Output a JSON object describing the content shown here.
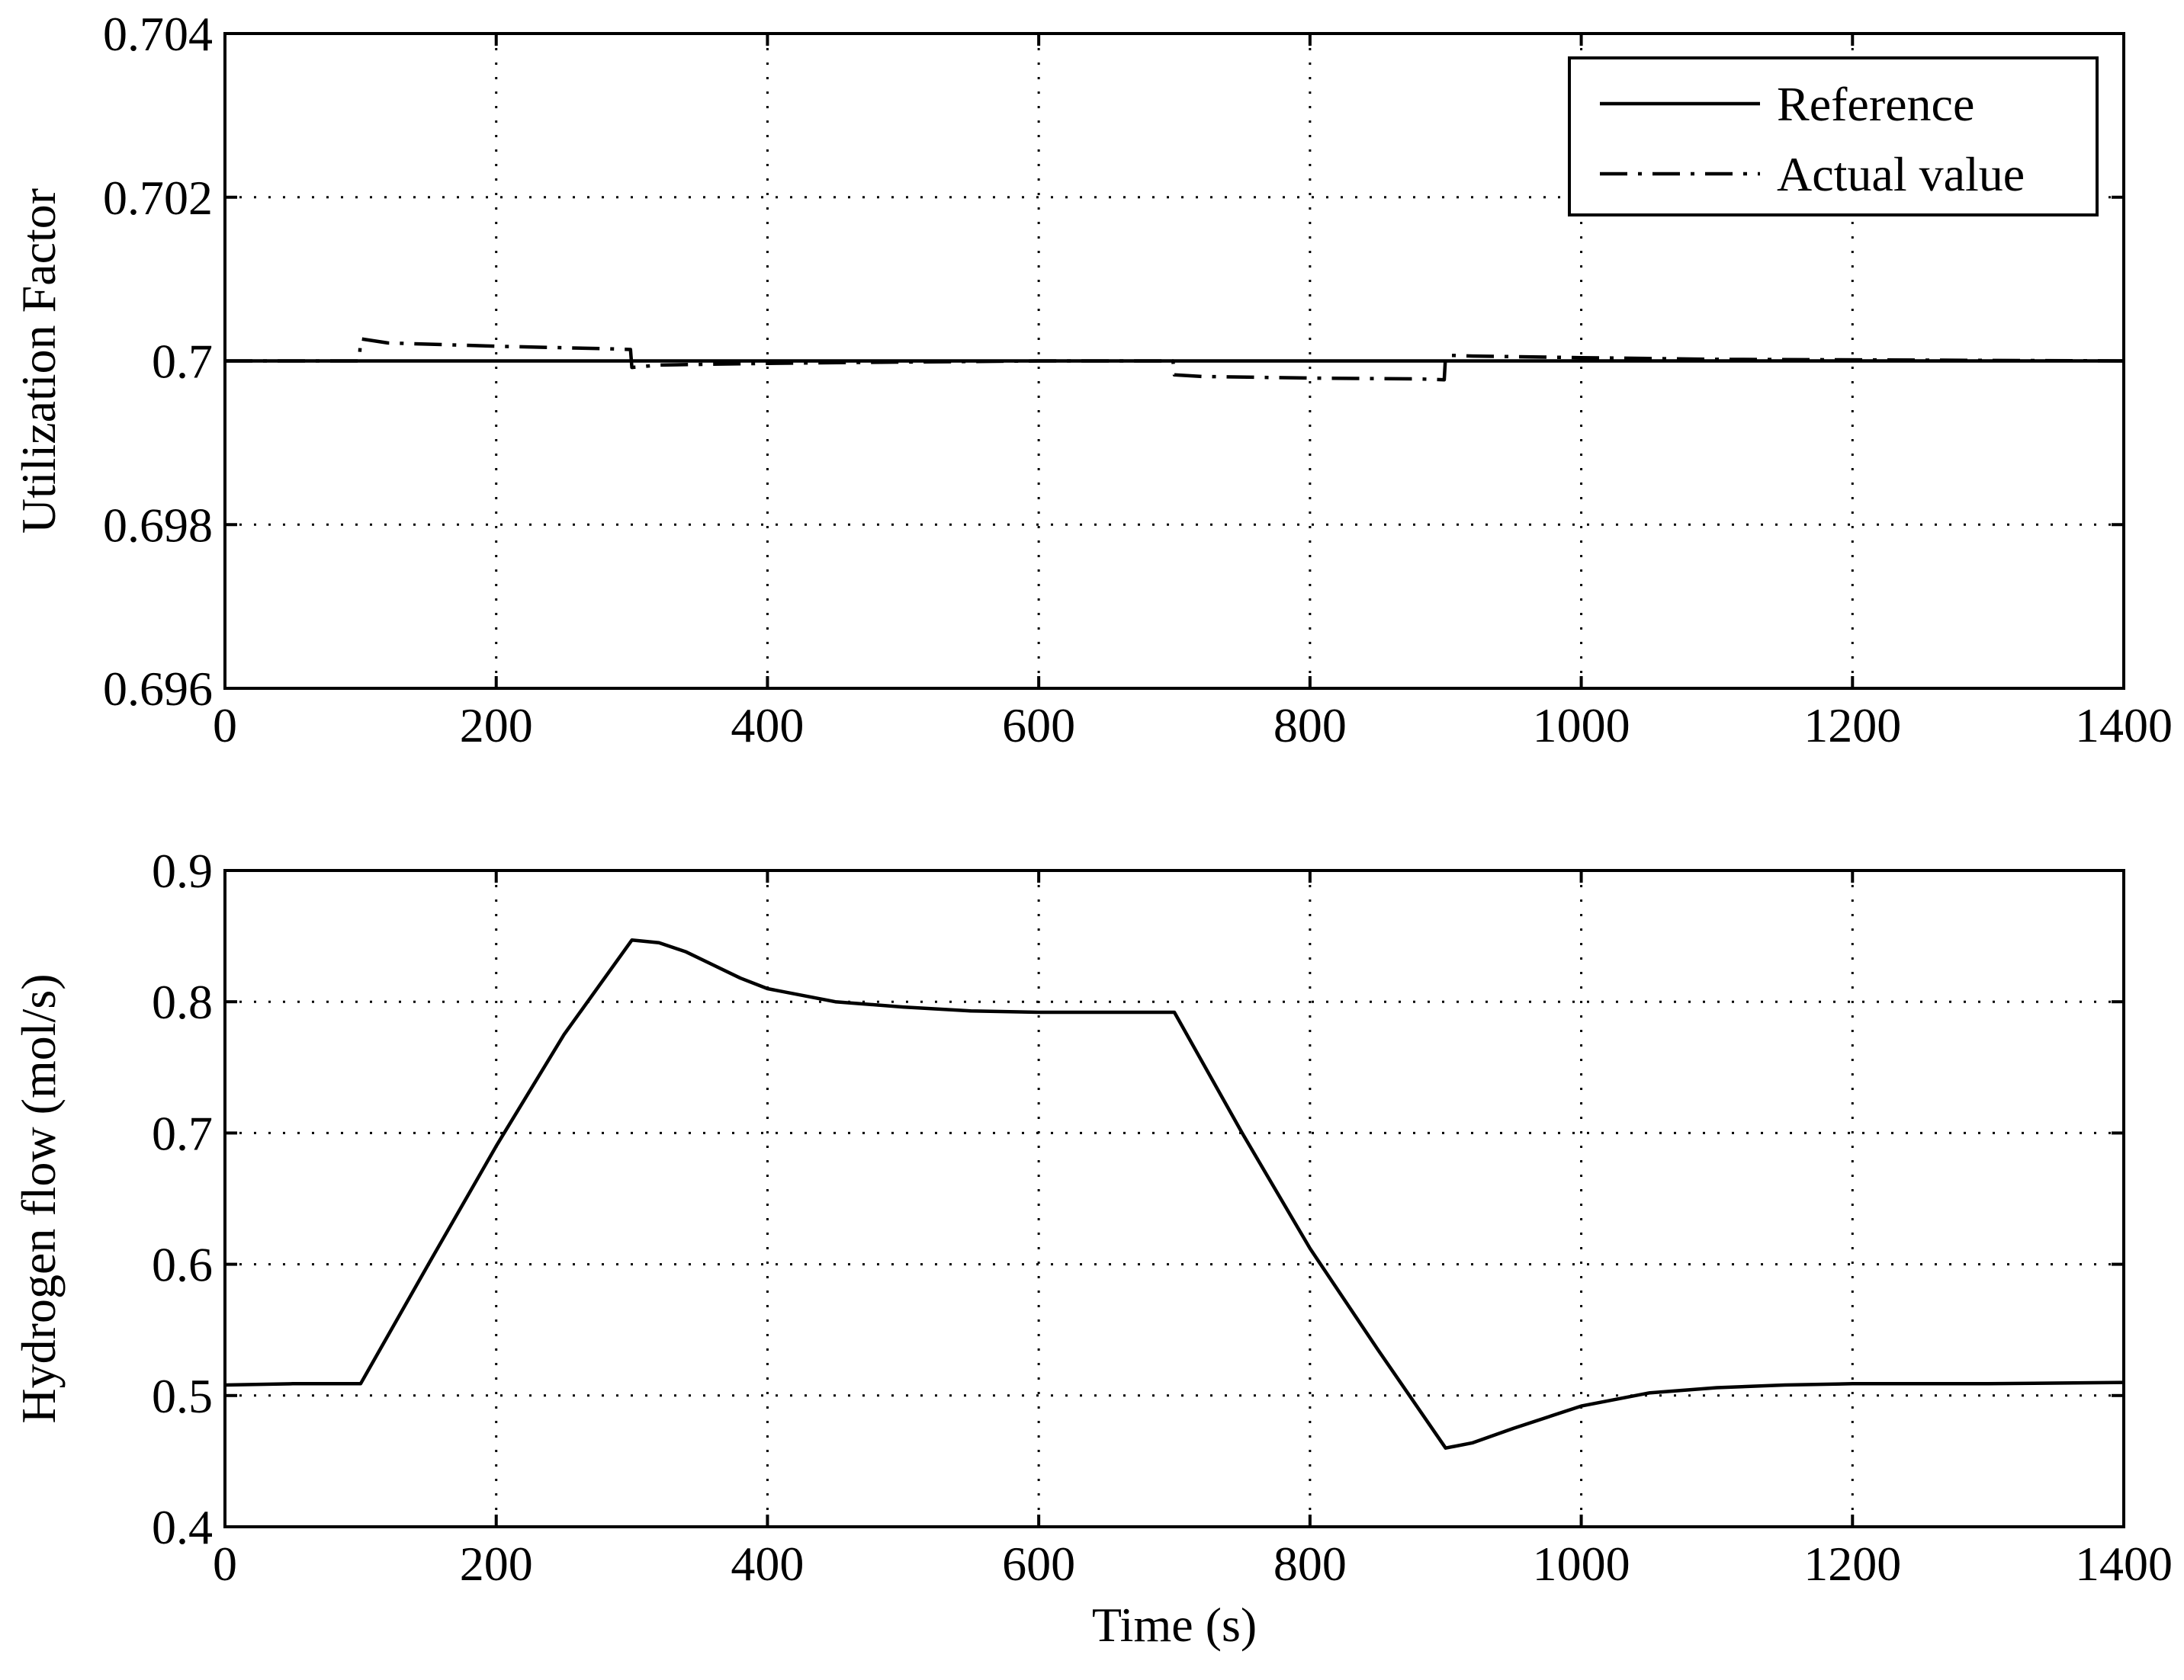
{
  "chart_data": [
    {
      "type": "line",
      "xlabel": "",
      "ylabel": "Utilization Factor",
      "xlim": [
        0,
        1400
      ],
      "ylim": [
        0.696,
        0.704
      ],
      "xticks": [
        0,
        200,
        400,
        600,
        800,
        1000,
        1200,
        1400
      ],
      "xtick_labels": [
        "0",
        "200",
        "400",
        "600",
        "800",
        "1000",
        "1200",
        "1400"
      ],
      "yticks": [
        0.696,
        0.698,
        0.7,
        0.702,
        0.704
      ],
      "ytick_labels": [
        "0.696",
        "0.698",
        "0.7",
        "0.702",
        "0.704"
      ],
      "grid": true,
      "legend": {
        "placement": "top-right",
        "entries": [
          "Reference",
          "Actual value"
        ]
      },
      "series": [
        {
          "name": "Reference",
          "style": "solid",
          "x": [
            0,
            1400
          ],
          "y": [
            0.7,
            0.7
          ]
        },
        {
          "name": "Actual value",
          "style": "dashdot",
          "x": [
            0,
            99,
            100,
            120,
            200,
            280,
            299,
            300,
            320,
            400,
            460,
            600,
            699,
            700,
            720,
            800,
            880,
            899,
            900,
            920,
            1000,
            1100,
            1400
          ],
          "y": [
            0.7,
            0.7,
            0.70027,
            0.70022,
            0.70018,
            0.70015,
            0.70014,
            0.69992,
            0.69995,
            0.69997,
            0.69998,
            0.7,
            0.7,
            0.69983,
            0.69981,
            0.69979,
            0.69978,
            0.69977,
            0.70007,
            0.70006,
            0.70004,
            0.70002,
            0.7
          ]
        }
      ]
    },
    {
      "type": "line",
      "xlabel": "Time (s)",
      "ylabel": "Hydrogen flow (mol/s)",
      "xlim": [
        0,
        1400
      ],
      "ylim": [
        0.4,
        0.9
      ],
      "xticks": [
        0,
        200,
        400,
        600,
        800,
        1000,
        1200,
        1400
      ],
      "xtick_labels": [
        "0",
        "200",
        "400",
        "600",
        "800",
        "1000",
        "1200",
        "1400"
      ],
      "yticks": [
        0.4,
        0.5,
        0.6,
        0.7,
        0.8,
        0.9
      ],
      "ytick_labels": [
        "0.4",
        "0.5",
        "0.6",
        "0.7",
        "0.8",
        "0.9"
      ],
      "grid": true,
      "series": [
        {
          "style": "solid",
          "x": [
            0,
            50,
            100,
            150,
            200,
            250,
            300,
            320,
            340,
            360,
            380,
            400,
            450,
            500,
            550,
            600,
            650,
            700,
            750,
            800,
            850,
            900,
            920,
            950,
            1000,
            1050,
            1100,
            1150,
            1200,
            1300,
            1400
          ],
          "y": [
            0.508,
            0.509,
            0.509,
            0.6,
            0.69,
            0.775,
            0.847,
            0.845,
            0.838,
            0.828,
            0.818,
            0.81,
            0.8,
            0.796,
            0.793,
            0.792,
            0.792,
            0.792,
            0.7,
            0.612,
            0.535,
            0.46,
            0.464,
            0.475,
            0.492,
            0.502,
            0.506,
            0.508,
            0.509,
            0.509,
            0.51
          ]
        }
      ]
    }
  ]
}
